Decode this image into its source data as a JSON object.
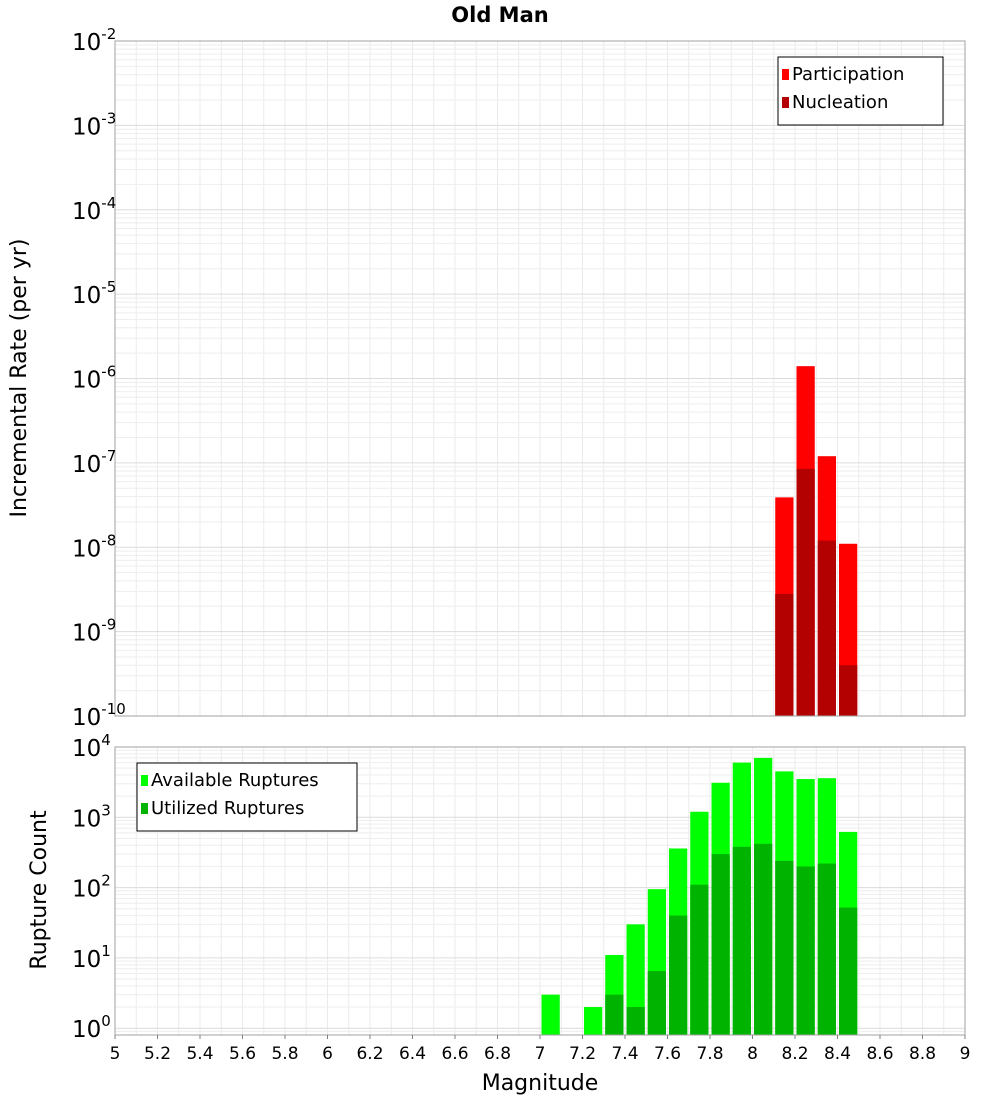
{
  "chart_data": [
    {
      "type": "bar",
      "title": "Old Man",
      "xlabel": "",
      "ylabel": "Incremental Rate (per yr)",
      "xlim": [
        5,
        9
      ],
      "ylim": [
        1e-10,
        0.01
      ],
      "yscale": "log",
      "ytick_exponents": [
        "-2",
        "-3",
        "-4",
        "-5",
        "-6",
        "-7",
        "-8",
        "-9",
        "-10"
      ],
      "grid": true,
      "legend_position": "top-right",
      "bin_width": 0.1,
      "series": [
        {
          "name": "Participation",
          "color": "#ff0000",
          "x": [
            8.15,
            8.25,
            8.35,
            8.45
          ],
          "values": [
            3.9e-08,
            1.4e-06,
            1.2e-07,
            1.1e-08
          ]
        },
        {
          "name": "Nucleation",
          "color": "#b30000",
          "x": [
            8.15,
            8.25,
            8.35,
            8.45
          ],
          "values": [
            2.8e-09,
            8.5e-08,
            1.2e-08,
            4e-10
          ]
        }
      ]
    },
    {
      "type": "bar",
      "title": "",
      "xlabel": "Magnitude",
      "ylabel": "Rupture Count",
      "xlim": [
        5,
        9
      ],
      "ylim": [
        0.8,
        10000
      ],
      "yscale": "log",
      "ytick_exponents": [
        "4",
        "3",
        "2",
        "1",
        "0"
      ],
      "xticks": [
        "5",
        "5.2",
        "5.4",
        "5.6",
        "5.8",
        "6",
        "6.2",
        "6.4",
        "6.6",
        "6.8",
        "7",
        "7.2",
        "7.4",
        "7.6",
        "7.8",
        "8",
        "8.2",
        "8.4",
        "8.6",
        "8.8",
        "9"
      ],
      "grid": true,
      "legend_position": "top-left",
      "bin_width": 0.1,
      "series": [
        {
          "name": "Available Ruptures",
          "color": "#00ff00",
          "x": [
            7.05,
            7.25,
            7.35,
            7.45,
            7.55,
            7.65,
            7.75,
            7.85,
            7.95,
            8.05,
            8.15,
            8.25,
            8.35,
            8.45
          ],
          "values": [
            3,
            2,
            11,
            30,
            95,
            360,
            1200,
            3100,
            6000,
            7000,
            4500,
            3500,
            3600,
            620
          ]
        },
        {
          "name": "Utilized Ruptures",
          "color": "#00b300",
          "x": [
            7.35,
            7.45,
            7.55,
            7.65,
            7.75,
            7.85,
            7.95,
            8.05,
            8.15,
            8.25,
            8.35,
            8.45
          ],
          "values": [
            3,
            2,
            6.5,
            40,
            110,
            300,
            380,
            420,
            240,
            200,
            220,
            52
          ]
        }
      ]
    }
  ]
}
